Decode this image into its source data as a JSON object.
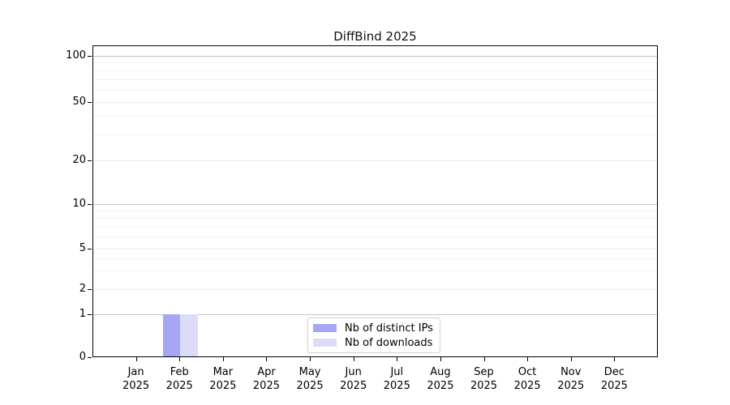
{
  "chart_data": {
    "type": "bar",
    "title": "DiffBind 2025",
    "x_months": [
      "Jan",
      "Feb",
      "Mar",
      "Apr",
      "May",
      "Jun",
      "Jul",
      "Aug",
      "Sep",
      "Oct",
      "Nov",
      "Dec"
    ],
    "x_year": "2025",
    "series": [
      {
        "name": "Nb of distinct IPs",
        "color": "#a6a6f5",
        "values": [
          0,
          1,
          0,
          0,
          0,
          0,
          0,
          0,
          0,
          0,
          0,
          0
        ]
      },
      {
        "name": "Nb of downloads",
        "color": "#dcdcf8",
        "values": [
          0,
          1,
          0,
          0,
          0,
          0,
          0,
          0,
          0,
          0,
          0,
          0
        ]
      }
    ],
    "yticks": [
      0,
      1,
      2,
      5,
      10,
      20,
      50,
      100
    ],
    "minor_gridlines": [
      3,
      4,
      6,
      7,
      8,
      9,
      30,
      40,
      60,
      70,
      80,
      90
    ],
    "ylim": [
      0,
      100
    ],
    "yscale": "log-like (compressed near zero)",
    "grid": "horizontal",
    "legend_position": "bottom-center",
    "colors": {
      "axis": "#000000",
      "grid_decade": "#c6c6c6",
      "grid_major": "#e9e9e9",
      "grid_minor": "#f2f2f2"
    }
  }
}
